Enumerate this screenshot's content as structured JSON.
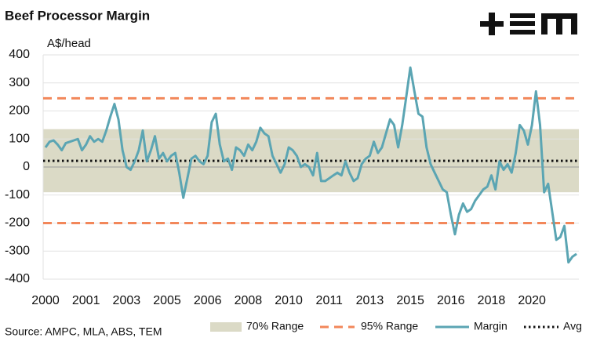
{
  "chart_data": {
    "type": "line",
    "title": "Beef Processor Margin",
    "y_label": "A$/head",
    "source": "Source: AMPC, MLA, ABS, TEM",
    "categories": [
      "2000",
      null,
      null,
      null,
      null,
      null,
      null,
      null,
      null,
      null,
      "2001",
      null,
      null,
      null,
      null,
      null,
      null,
      null,
      null,
      null,
      "2003",
      null,
      null,
      null,
      null,
      null,
      null,
      null,
      null,
      null,
      "2005",
      null,
      null,
      null,
      null,
      null,
      null,
      null,
      null,
      null,
      "2006",
      null,
      null,
      null,
      null,
      null,
      null,
      null,
      null,
      null,
      "2008",
      null,
      null,
      null,
      null,
      null,
      null,
      null,
      null,
      null,
      "2010",
      null,
      null,
      null,
      null,
      null,
      null,
      null,
      null,
      null,
      "2011",
      null,
      null,
      null,
      null,
      null,
      null,
      null,
      null,
      null,
      "2013",
      null,
      null,
      null,
      null,
      null,
      null,
      null,
      null,
      null,
      "2015",
      null,
      null,
      null,
      null,
      null,
      null,
      null,
      null,
      null,
      "2016",
      null,
      null,
      null,
      null,
      null,
      null,
      null,
      null,
      null,
      "2018",
      null,
      null,
      null,
      null,
      null,
      null,
      null,
      null,
      null,
      "2020",
      null,
      null,
      null,
      null,
      null,
      null,
      null,
      null,
      null,
      null,
      null
    ],
    "series": [
      {
        "name": "Margin",
        "color": "#5ba5b3",
        "values": [
          70,
          90,
          95,
          80,
          60,
          85,
          90,
          95,
          100,
          60,
          80,
          110,
          90,
          100,
          90,
          130,
          180,
          225,
          170,
          60,
          0,
          -10,
          20,
          60,
          130,
          20,
          60,
          110,
          30,
          50,
          20,
          40,
          50,
          -20,
          -110,
          -40,
          30,
          40,
          20,
          10,
          40,
          160,
          190,
          80,
          20,
          30,
          -10,
          70,
          60,
          40,
          80,
          60,
          90,
          140,
          120,
          110,
          40,
          10,
          -20,
          10,
          70,
          60,
          40,
          0,
          10,
          0,
          -30,
          50,
          -50,
          -50,
          -40,
          -30,
          -20,
          -30,
          20,
          -20,
          -50,
          -40,
          10,
          30,
          40,
          90,
          50,
          70,
          120,
          170,
          150,
          70,
          150,
          250,
          355,
          270,
          190,
          180,
          70,
          10,
          -20,
          -50,
          -80,
          -90,
          -170,
          -240,
          -170,
          -130,
          -160,
          -150,
          -120,
          -100,
          -80,
          -70,
          -30,
          -80,
          20,
          -10,
          10,
          -20,
          50,
          150,
          130,
          80,
          150,
          270,
          150,
          -90,
          -60,
          -160,
          -260,
          -250,
          -210,
          -340,
          -320,
          -310
        ]
      }
    ],
    "range_70": {
      "name": "70% Range",
      "low": -90,
      "high": 135,
      "color": "#dbdac6"
    },
    "range_95": {
      "name": "95% Range",
      "low": -200,
      "high": 245,
      "color": "#f2875a"
    },
    "average": {
      "name": "Avg",
      "value": 22,
      "color": "#111111"
    },
    "ylim": [
      -400,
      400
    ],
    "yticks": [
      -400,
      -300,
      -200,
      -100,
      0,
      100,
      200,
      300,
      400
    ],
    "grid": true
  }
}
